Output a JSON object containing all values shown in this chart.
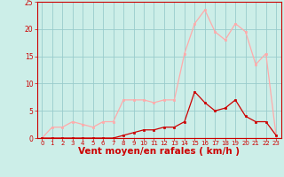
{
  "x": [
    0,
    1,
    2,
    3,
    4,
    5,
    6,
    7,
    8,
    9,
    10,
    11,
    12,
    13,
    14,
    15,
    16,
    17,
    18,
    19,
    20,
    21,
    22,
    23
  ],
  "y_moyen": [
    0,
    0,
    0,
    0,
    0,
    0,
    0,
    0,
    0.5,
    1,
    1.5,
    1.5,
    2,
    2,
    3,
    8.5,
    6.5,
    5,
    5.5,
    7,
    4,
    3,
    3,
    0.5
  ],
  "y_rafales": [
    0,
    2,
    2,
    3,
    2.5,
    2,
    3,
    3,
    7,
    7,
    7,
    6.5,
    7,
    7,
    15.5,
    21,
    23.5,
    19.5,
    18,
    21,
    19.5,
    13.5,
    15.5,
    0.5
  ],
  "line_color_moyen": "#cc0000",
  "line_color_rafales": "#ffaaaa",
  "xlabel": "Vent moyen/en rafales ( km/h )",
  "bg_color": "#cceee8",
  "grid_color": "#99cccc",
  "ylim": [
    0,
    25
  ],
  "xlim": [
    -0.5,
    23.5
  ],
  "yticks": [
    0,
    5,
    10,
    15,
    20,
    25
  ],
  "xticks": [
    0,
    1,
    2,
    3,
    4,
    5,
    6,
    7,
    8,
    9,
    10,
    11,
    12,
    13,
    14,
    15,
    16,
    17,
    18,
    19,
    20,
    21,
    22,
    23
  ],
  "tick_color": "#cc0000",
  "xlabel_fontsize": 7.5,
  "tick_fontsize": 5.0
}
